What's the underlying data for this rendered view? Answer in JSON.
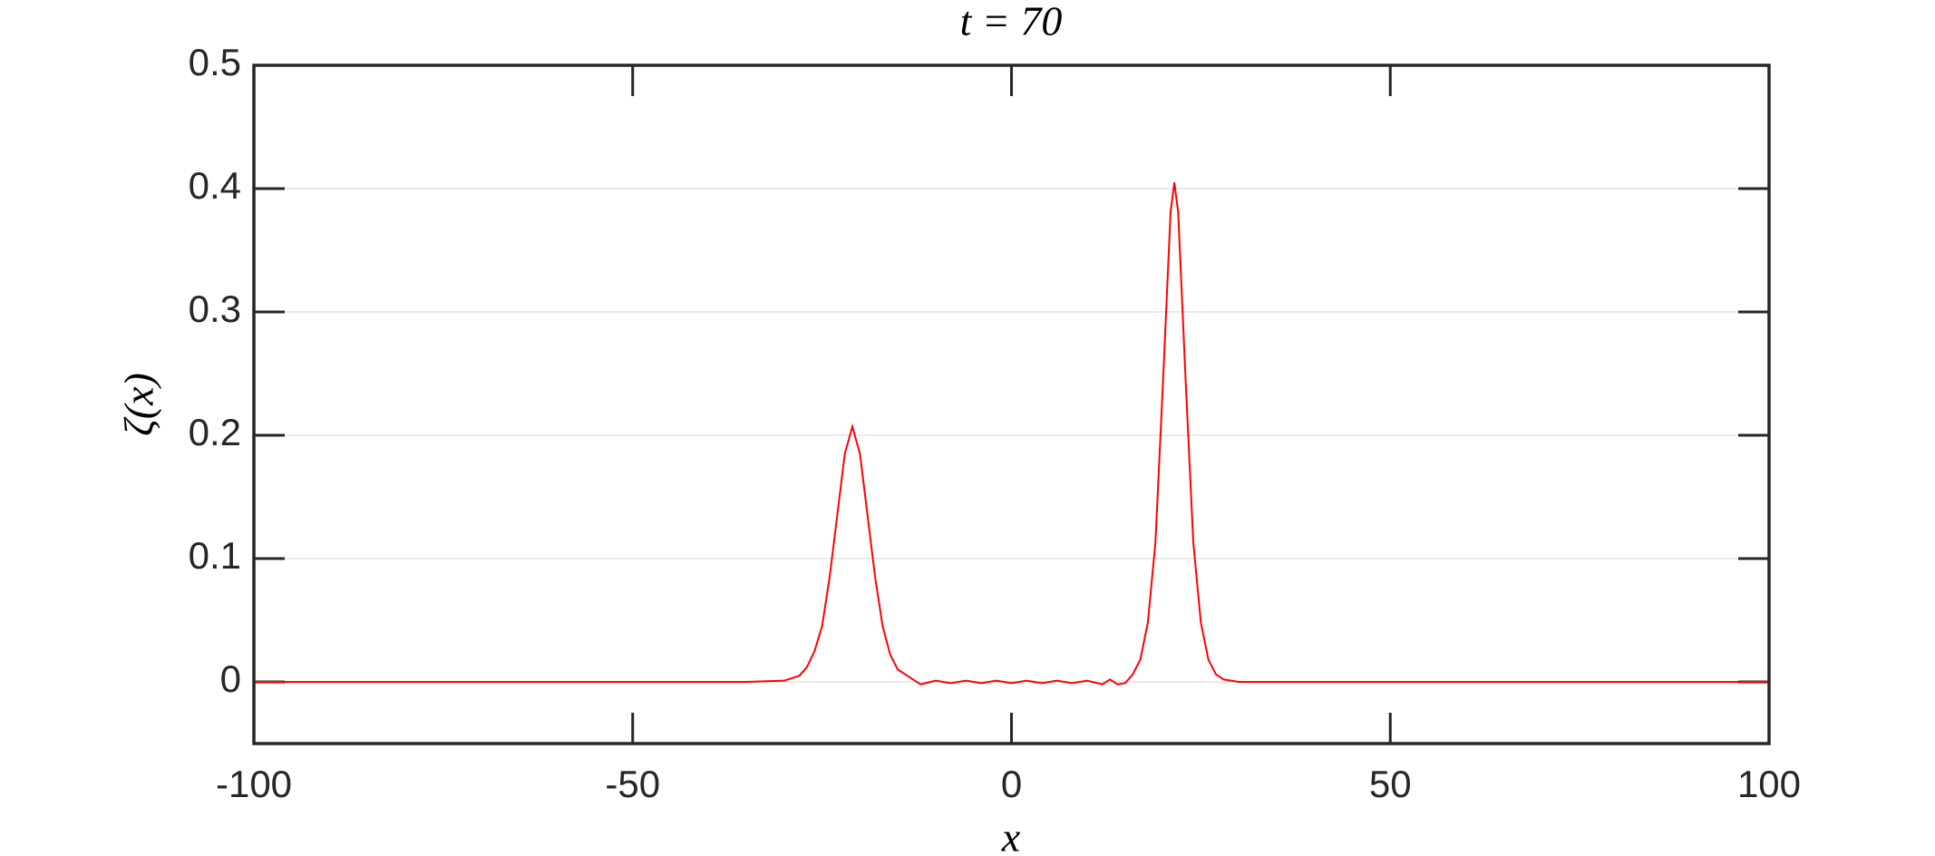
{
  "chart_data": {
    "type": "line",
    "title": "t = 70",
    "xlabel": "x",
    "ylabel": "ζ(x)",
    "x": [
      -100,
      -80,
      -60,
      -40,
      -35,
      -30,
      -28,
      -27,
      -26,
      -25,
      -24,
      -23,
      -22,
      -21,
      -20,
      -19,
      -18,
      -17,
      -16,
      -15,
      -14,
      -13,
      -12,
      -10,
      -8,
      -6,
      -4,
      -2,
      0,
      2,
      4,
      6,
      8,
      10,
      12,
      13,
      14,
      15,
      16,
      17,
      18,
      19,
      20,
      21,
      21.5,
      22,
      23,
      24,
      25,
      26,
      27,
      28,
      30,
      35,
      40,
      60,
      80,
      100
    ],
    "series": [
      {
        "name": "ζ",
        "color": "#ff0000",
        "values": [
          0,
          0,
          0,
          0,
          0,
          0.001,
          0.005,
          0.012,
          0.025,
          0.045,
          0.085,
          0.135,
          0.185,
          0.207,
          0.185,
          0.135,
          0.085,
          0.045,
          0.022,
          0.01,
          0.006,
          0.002,
          -0.002,
          0.001,
          -0.001,
          0.001,
          -0.001,
          0.001,
          -0.001,
          0.001,
          -0.001,
          0.001,
          -0.001,
          0.001,
          -0.002,
          0.002,
          -0.002,
          -0.001,
          0.006,
          0.018,
          0.048,
          0.113,
          0.243,
          0.381,
          0.405,
          0.381,
          0.243,
          0.113,
          0.048,
          0.018,
          0.006,
          0.002,
          0,
          0,
          0,
          0,
          0,
          0
        ]
      }
    ],
    "xlim": [
      -100,
      100
    ],
    "ylim": [
      -0.05,
      0.5
    ],
    "xticks": [
      -100,
      -50,
      0,
      50,
      100
    ],
    "yticks": [
      0,
      0.1,
      0.2,
      0.3,
      0.4,
      0.5
    ],
    "grid": true
  }
}
